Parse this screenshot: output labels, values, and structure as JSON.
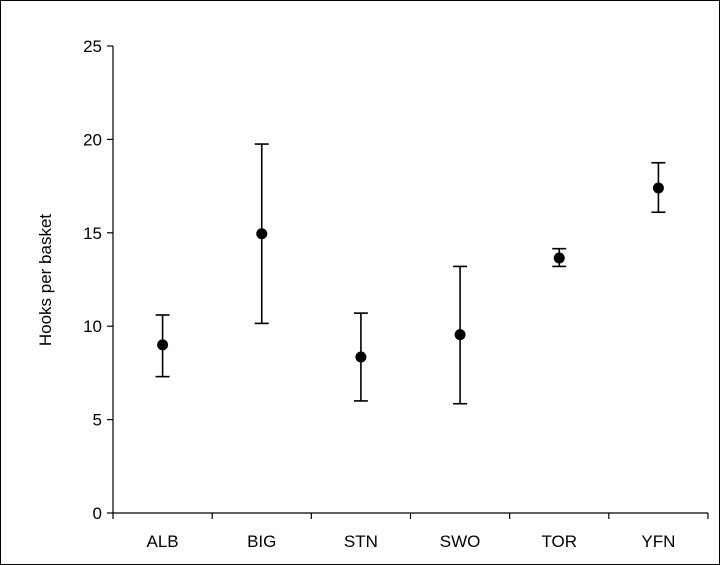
{
  "chart_data": {
    "type": "scatter",
    "title": "",
    "xlabel": "",
    "ylabel": "Hooks per basket",
    "categories": [
      "ALB",
      "BIG",
      "STN",
      "SWO",
      "TOR",
      "YFN"
    ],
    "values": [
      9.0,
      14.95,
      8.35,
      9.55,
      13.65,
      17.4
    ],
    "error_low": [
      7.3,
      10.15,
      6.0,
      5.85,
      13.2,
      16.1
    ],
    "error_high": [
      10.6,
      19.75,
      10.7,
      13.2,
      14.15,
      18.75
    ],
    "ylim": [
      0,
      25
    ],
    "yticks": [
      "0",
      "5",
      "10",
      "15",
      "20",
      "25"
    ],
    "grid": false,
    "legend": "none",
    "marker_color": "#000000"
  }
}
